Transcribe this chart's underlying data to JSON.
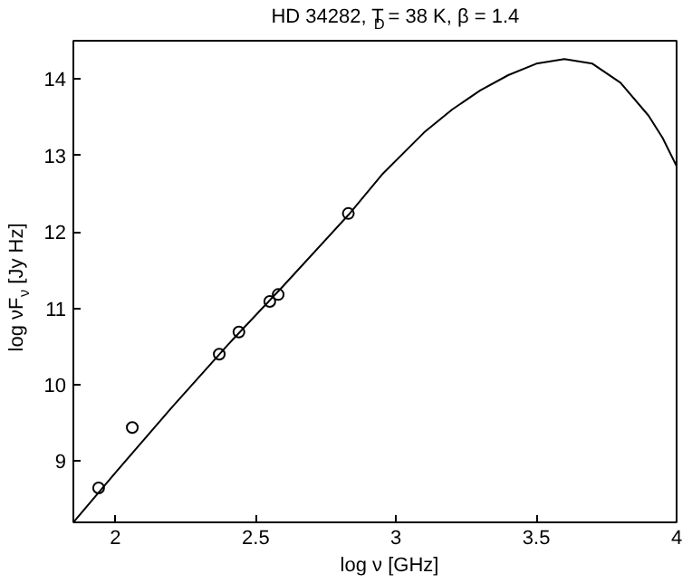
{
  "chart_data": {
    "type": "line",
    "title": "HD 34282, T$_{D}$ = 38 K, β = 1.4",
    "xlabel": "log ν [GHz]",
    "ylabel": "log νF$_{ν}$ [Jy Hz]",
    "xlim": [
      1.85,
      4
    ],
    "xticks": [
      2,
      2.5,
      3,
      3.5,
      4
    ],
    "ylim": [
      8.2,
      14.5
    ],
    "yticks": [
      9,
      10,
      11,
      12,
      13,
      14
    ],
    "grid": false,
    "series": [
      {
        "type": "line",
        "color": "#000000",
        "line_style": "solid",
        "marker": "none",
        "x": [
          1.85,
          2.0,
          2.2,
          2.4,
          2.6,
          2.83,
          2.95,
          3.1,
          3.2,
          3.3,
          3.4,
          3.5,
          3.6,
          3.7,
          3.8,
          3.9,
          3.95,
          4.0
        ],
        "values": [
          8.2,
          8.85,
          9.7,
          10.52,
          11.3,
          12.22,
          12.75,
          13.3,
          13.6,
          13.85,
          14.05,
          14.2,
          14.26,
          14.2,
          13.95,
          13.52,
          13.23,
          12.86
        ]
      },
      {
        "type": "scatter",
        "color": "#000000",
        "marker": "circle",
        "x": [
          1.94,
          2.06,
          2.37,
          2.44,
          2.55,
          2.58,
          2.83
        ],
        "values": [
          8.65,
          9.44,
          10.4,
          10.69,
          11.09,
          11.18,
          12.24
        ]
      }
    ]
  }
}
